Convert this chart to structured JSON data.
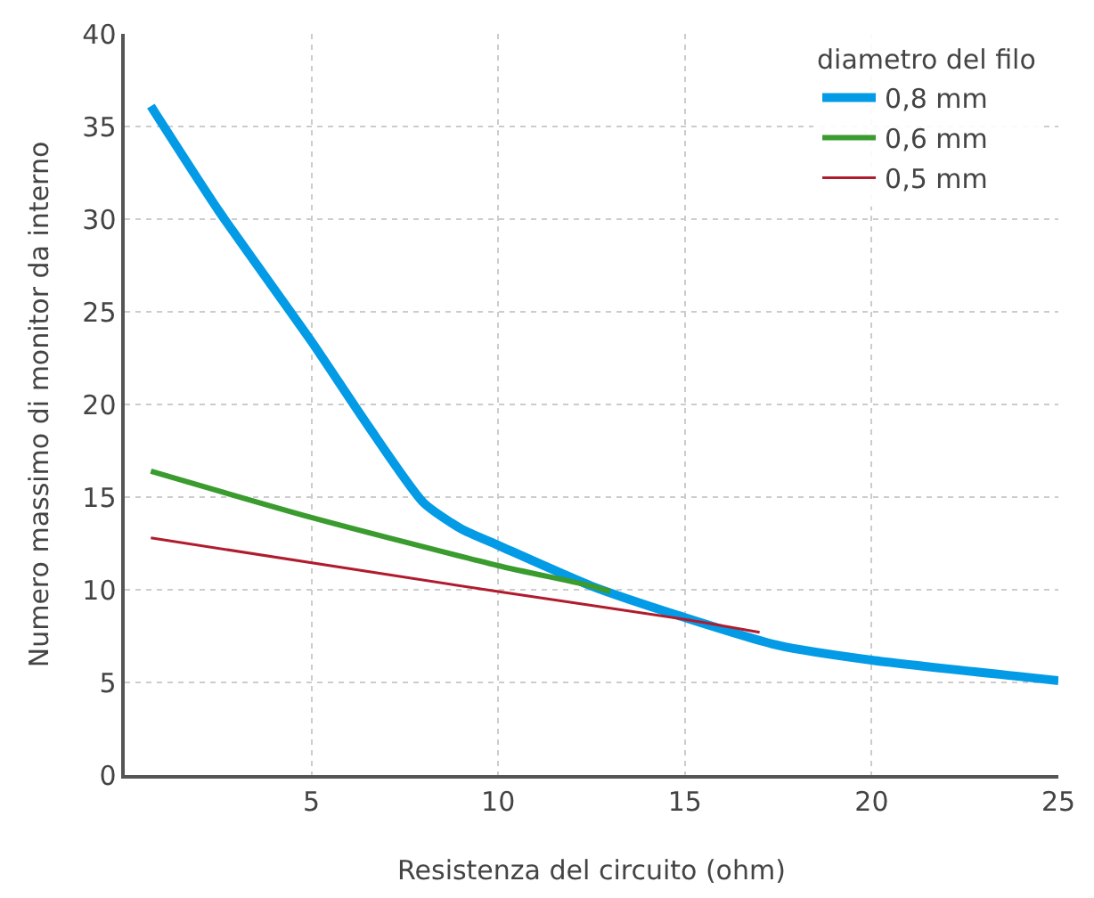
{
  "chart_data": {
    "type": "line",
    "xlabel": "Resistenza del circuito (ohm)",
    "ylabel": "Numero massimo di monitor da interno",
    "legend_title": "diametro del filo",
    "series": [
      {
        "name": "0,8 mm",
        "color": "#039be5",
        "x": [
          0.7,
          2.5,
          5,
          6.5,
          8,
          9,
          10,
          12.5,
          15,
          17.5,
          20,
          25
        ],
        "values": [
          36.1,
          30.5,
          23.4,
          18.9,
          14.7,
          13.3,
          12.4,
          10.2,
          8.5,
          7.0,
          6.2,
          5.1
        ]
      },
      {
        "name": "0,6 mm",
        "color": "#3a9b2e",
        "x": [
          0.7,
          5,
          10,
          12.5,
          13
        ],
        "values": [
          16.4,
          13.9,
          11.3,
          10.2,
          9.9
        ]
      },
      {
        "name": "0,5 mm",
        "color": "#b01c2e",
        "x": [
          0.7,
          10,
          15,
          17
        ],
        "values": [
          12.8,
          9.9,
          8.4,
          7.7
        ]
      }
    ],
    "xlim": [
      0,
      25
    ],
    "xticks": [
      5,
      10,
      15,
      20,
      25
    ],
    "ylim": [
      0,
      40
    ],
    "yticks": [
      0,
      5,
      10,
      15,
      20,
      25,
      30,
      35,
      40
    ],
    "grid": true,
    "legend": "top right",
    "marker": "none",
    "line_style": "solid"
  }
}
